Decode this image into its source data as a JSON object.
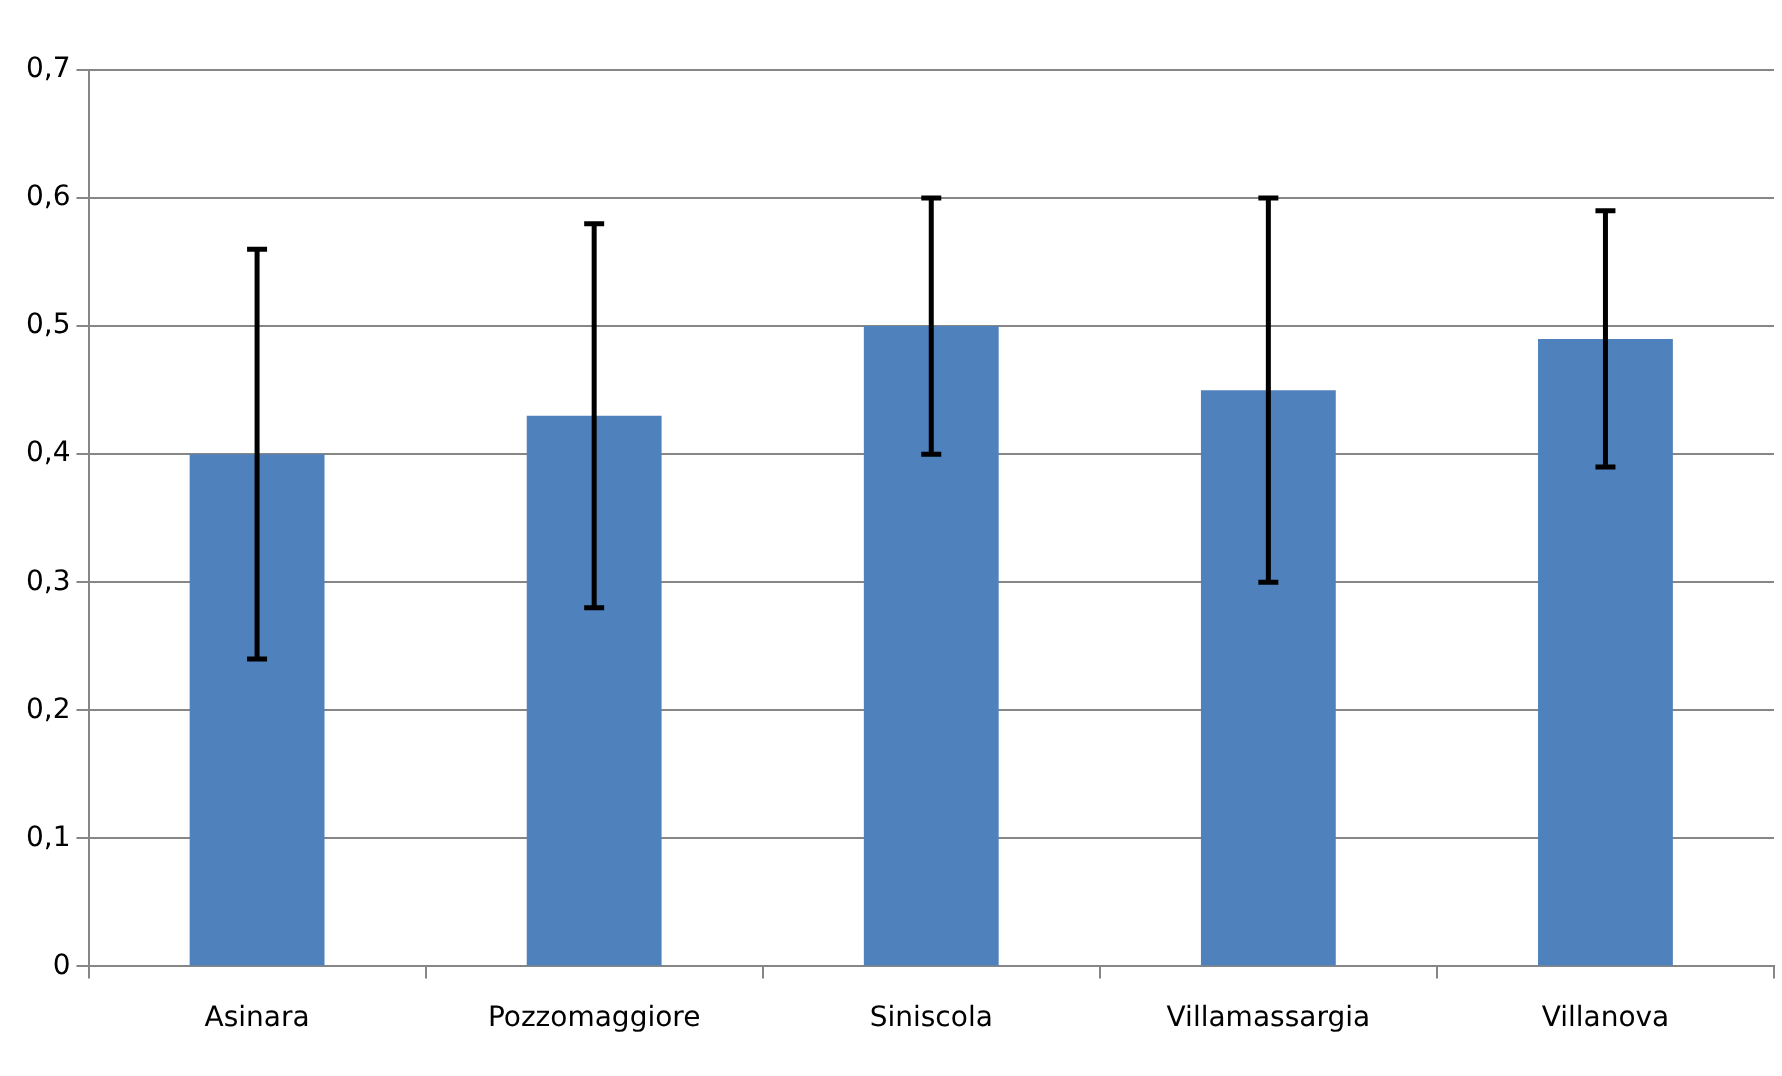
{
  "chart_data": {
    "type": "bar",
    "categories": [
      "Asinara",
      "Pozzomaggiore",
      "Siniscola",
      "Villamassargia",
      "Villanova"
    ],
    "values": [
      0.4,
      0.43,
      0.5,
      0.45,
      0.49
    ],
    "errors": [
      0.16,
      0.15,
      0.1,
      0.15,
      0.1
    ],
    "color": "#4f81bd",
    "ylim": [
      0,
      0.7
    ],
    "yticks": [
      0,
      {
        "value": 0.1,
        "label": "0,1"
      },
      {
        "value": 0.2,
        "label": "0,2"
      },
      {
        "value": 0.3,
        "label": "0,3"
      },
      {
        "value": 0.4,
        "label": "0,4"
      },
      {
        "value": 0.5,
        "label": "0,5"
      },
      {
        "value": 0.6,
        "label": "0,6"
      },
      {
        "value": 0.7,
        "label": "0,7"
      }
    ],
    "grid": "y",
    "legend": false
  }
}
